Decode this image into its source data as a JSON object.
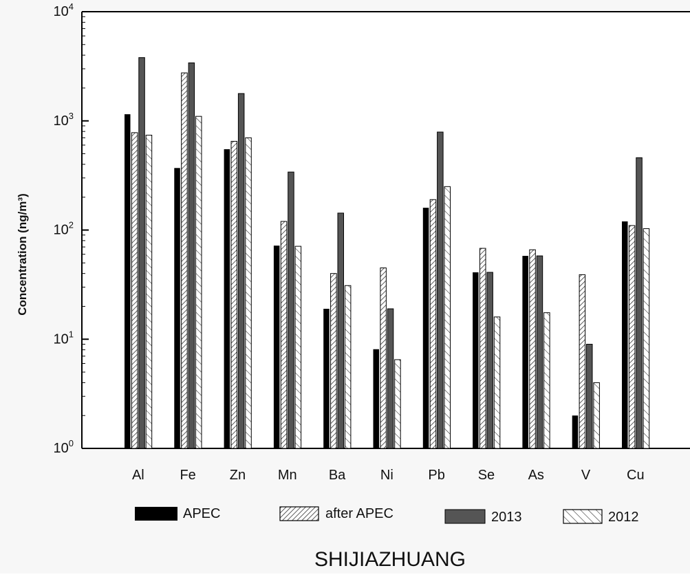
{
  "chart_data": {
    "type": "bar",
    "title": "SHIJIAZHUANG",
    "xlabel": "",
    "ylabel": "Concentration (ng/m³)",
    "yscale": "log",
    "ylim": [
      1,
      10000
    ],
    "y_ticks": [
      {
        "value": 1,
        "base": "10",
        "exp": "0"
      },
      {
        "value": 10,
        "base": "10",
        "exp": "1"
      },
      {
        "value": 100,
        "base": "10",
        "exp": "2"
      },
      {
        "value": 1000,
        "base": "10",
        "exp": "3"
      },
      {
        "value": 10000,
        "base": "10",
        "exp": "4"
      }
    ],
    "categories": [
      "Al",
      "Fe",
      "Zn",
      "Mn",
      "Ba",
      "Ni",
      "Pb",
      "Se",
      "As",
      "V",
      "Cu"
    ],
    "series": [
      {
        "name": "APEC",
        "pattern": "solid-black",
        "values": [
          1150,
          370,
          550,
          72,
          19,
          8.1,
          160,
          41,
          58,
          2.0,
          120
        ]
      },
      {
        "name": "after APEC",
        "pattern": "diagonal-hatch",
        "values": [
          780,
          2750,
          650,
          120,
          40,
          45,
          190,
          68,
          66,
          39,
          110
        ]
      },
      {
        "name": "2013",
        "pattern": "solid-gray",
        "values": [
          3800,
          3400,
          1780,
          340,
          143,
          19,
          790,
          41,
          58,
          9,
          460
        ]
      },
      {
        "name": "2012",
        "pattern": "back-hatch",
        "values": [
          740,
          1100,
          700,
          71,
          31,
          6.5,
          250,
          16,
          17.5,
          4,
          103
        ]
      }
    ],
    "legend_position": "bottom",
    "grid": false,
    "colors": {
      "apec": "#000000",
      "y2013": "#555555",
      "hatch": "#333333"
    }
  }
}
